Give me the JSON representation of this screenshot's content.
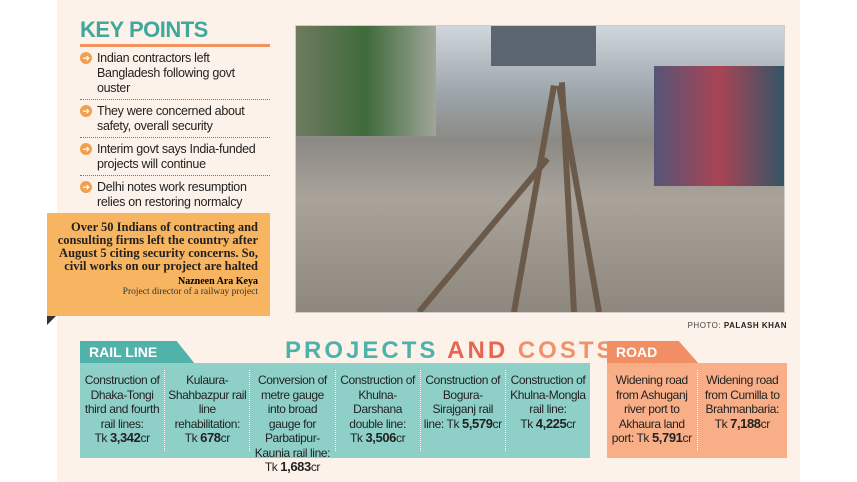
{
  "key_points": {
    "title": "KEY POINTS",
    "items": [
      "Indian contractors left Bangladesh following govt ouster",
      "They were concerned about safety, overall security",
      "Interim govt says India-funded projects will continue",
      "Delhi notes work resumption relies on restoring normalcy"
    ]
  },
  "quote": {
    "text": "Over 50 Indians of contracting and consulting firms left the country after August 5 citing security concerns. So, civil works on our project are halted",
    "name": "Nazneen Ara Keya",
    "role": "Project director of a railway project"
  },
  "photo": {
    "credit_label": "PHOTO:",
    "credit_name": "PALASH KHAN"
  },
  "heading": {
    "part1": "PROJECTS",
    "part2": "AND",
    "part3": "COSTS"
  },
  "rail": {
    "label": "RAIL LINE",
    "items": [
      {
        "desc": "Construction of Dhaka-Tongi third and fourth rail lines:",
        "cost": "3,342"
      },
      {
        "desc": "Kulaura-Shahbazpur rail line rehabilitation:",
        "cost": "678"
      },
      {
        "desc": "Conversion of metre gauge into broad gauge for Parbatipur-Kaunia rail line:",
        "cost": "1,683"
      },
      {
        "desc": "Construction of Khulna-Darshana double line:",
        "cost": "3,506"
      },
      {
        "desc": "Construction of Bogura-Sirajganj rail line:",
        "cost": "5,579"
      },
      {
        "desc": "Construction of Khulna-Mongla rail line:",
        "cost": "4,225"
      }
    ]
  },
  "road": {
    "label": "ROAD",
    "items": [
      {
        "desc": "Widening road from Ashuganj river port to Akhaura land port:",
        "cost": "5,791"
      },
      {
        "desc": "Widening road from Cumilla to Brahmanbaria:",
        "cost": "7,188"
      }
    ]
  },
  "currency": "Tk",
  "unit": "cr",
  "colors": {
    "teal": "#4fb3aa",
    "teal_light": "#8ed0c8",
    "orange": "#f28e63",
    "orange_light": "#f8ae86",
    "quote_bg": "#f7b461",
    "background": "#fdf2ea"
  }
}
